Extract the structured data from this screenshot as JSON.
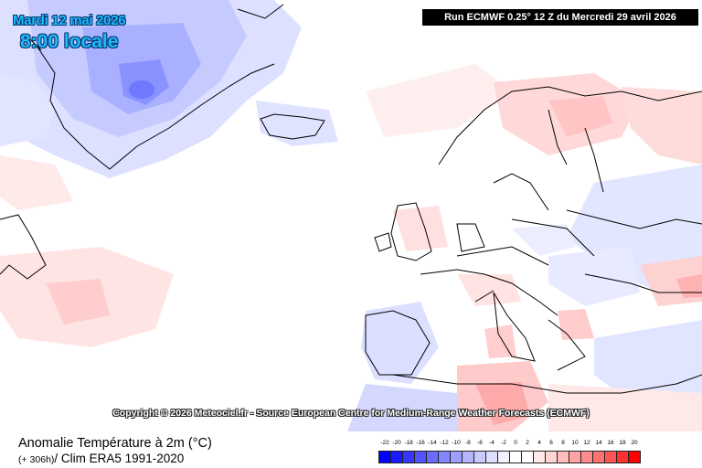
{
  "header": {
    "date": "Mardi 12 mai 2026",
    "local_time": "8:00 locale",
    "run": "Run ECMWF 0.25° 12 Z du Mercredi 29 avril 2026"
  },
  "copyright": "Copyright © 2026 Meteociel.fr - Source European Centre for Medium-Range Weather Forecasts (ECMWF)",
  "footer": {
    "title": "Anomalie Température à 2m (°C)",
    "lead_time": "(+ 306h)",
    "climatology": "/ Clim ERA5 1991-2020"
  },
  "legend": {
    "unit": "°C",
    "labels": [
      "-22",
      "-20",
      "-18",
      "-16",
      "-14",
      "-12",
      "-10",
      "-8",
      "-6",
      "-4",
      "-2",
      "0",
      "2",
      "4",
      "6",
      "8",
      "10",
      "12",
      "14",
      "16",
      "18",
      "20"
    ],
    "colors": [
      "#0000ff",
      "#1a1aff",
      "#3636ff",
      "#5252ff",
      "#6b6bff",
      "#8585ff",
      "#9e9eff",
      "#b4b4ff",
      "#cacaff",
      "#dedeff",
      "#f2f2ff",
      "#ffffff",
      "#ffffff",
      "#ffe8e8",
      "#ffd4d4",
      "#ffbcbc",
      "#ffa4a4",
      "#ff8c8c",
      "#ff7070",
      "#ff5454",
      "#ff3030",
      "#ff0000"
    ]
  },
  "map": {
    "projection_area": "North Atlantic and Europe",
    "background_color": "#ffffff",
    "coastline_color": "#000000"
  }
}
